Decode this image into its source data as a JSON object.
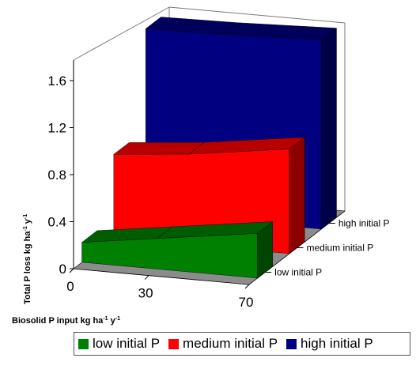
{
  "chart_data": {
    "type": "area",
    "x": [
      0,
      30,
      70
    ],
    "x_tick_labels": [
      "0",
      "30",
      "70"
    ],
    "series": [
      {
        "name": "low initial P",
        "values": [
          0.17,
          0.26,
          0.38
        ],
        "color": "#008000"
      },
      {
        "name": "medium initial P",
        "values": [
          0.71,
          0.77,
          0.89
        ],
        "color": "#ff0000"
      },
      {
        "name": "high initial P",
        "values": [
          1.57,
          1.58,
          1.61
        ],
        "color": "#000080"
      }
    ],
    "depth_labels": [
      "low  initial P",
      "medium initial P",
      "high initial P"
    ],
    "y_ticks": [
      "0",
      "0.4",
      "0.8",
      "1.2",
      "1.6"
    ],
    "y_tick_values": [
      0,
      0.4,
      0.8,
      1.2,
      1.6
    ],
    "ylim": [
      0,
      1.6
    ],
    "ylabel_main": "Total P loss kg ha",
    "ylabel_sup1": "-1",
    "ylabel_sep": " y",
    "ylabel_sup2": "-1",
    "xlabel_main": "Biosolid P input kg ha",
    "xlabel_sup1": "-1",
    "xlabel_sep": " y",
    "xlabel_sup2": "-1",
    "gridlines": false,
    "legend_position": "bottom"
  }
}
